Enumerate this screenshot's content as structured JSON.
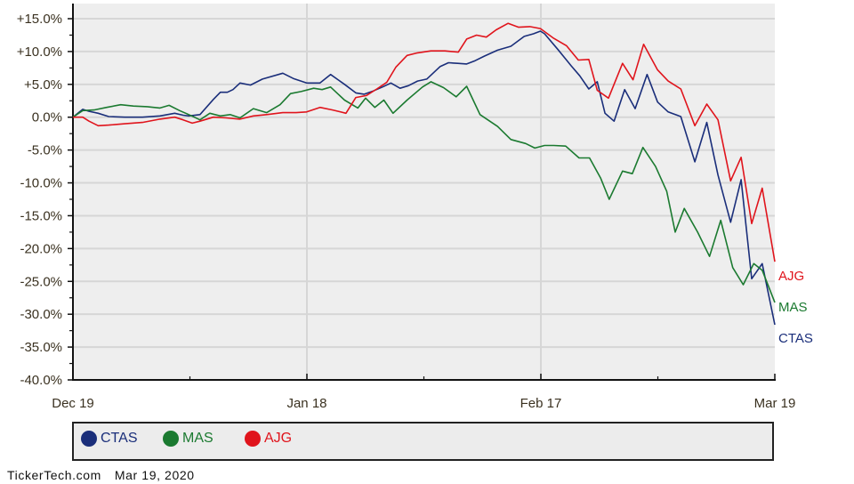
{
  "footer": {
    "source": "TickerTech.com",
    "date": "Mar 19, 2020"
  },
  "legend": [
    {
      "label": "CTAS",
      "color": "#1a2e7a"
    },
    {
      "label": "MAS",
      "color": "#1b7a30"
    },
    {
      "label": "AJG",
      "color": "#e0141c"
    }
  ],
  "chart_data": {
    "type": "line",
    "title": "",
    "xlabel": "",
    "ylabel": "",
    "ylim": [
      -40,
      15
    ],
    "y_ticks": [
      "+15.0%",
      "+10.0%",
      "+5.0%",
      "0.0%",
      "-5.0%",
      "-10.0%",
      "-15.0%",
      "-20.0%",
      "-25.0%",
      "-30.0%",
      "-35.0%",
      "-40.0%"
    ],
    "x_ticks": [
      "Dec 19",
      "Jan 18",
      "Feb 17",
      "Mar 19"
    ],
    "x_range": [
      "Dec 19",
      "Mar 19"
    ],
    "grid": true,
    "legend_position": "bottom",
    "plot_bg": "#eeeeee",
    "series": [
      {
        "name": "CTAS",
        "color": "#1a2e7a",
        "end_label": "CTAS",
        "points": [
          [
            0.0,
            0.0
          ],
          [
            0.014,
            1.2
          ],
          [
            0.023,
            0.9
          ],
          [
            0.036,
            0.6
          ],
          [
            0.051,
            0.1
          ],
          [
            0.074,
            0.0
          ],
          [
            0.099,
            0.0
          ],
          [
            0.124,
            0.2
          ],
          [
            0.145,
            0.6
          ],
          [
            0.157,
            0.3
          ],
          [
            0.165,
            0.2
          ],
          [
            0.181,
            0.4
          ],
          [
            0.2,
            2.7
          ],
          [
            0.21,
            3.8
          ],
          [
            0.22,
            3.8
          ],
          [
            0.228,
            4.2
          ],
          [
            0.238,
            5.2
          ],
          [
            0.253,
            4.9
          ],
          [
            0.27,
            5.8
          ],
          [
            0.299,
            6.7
          ],
          [
            0.314,
            5.9
          ],
          [
            0.333,
            5.2
          ],
          [
            0.352,
            5.2
          ],
          [
            0.367,
            6.5
          ],
          [
            0.387,
            5.0
          ],
          [
            0.403,
            3.7
          ],
          [
            0.415,
            3.5
          ],
          [
            0.428,
            4.0
          ],
          [
            0.441,
            4.6
          ],
          [
            0.453,
            5.2
          ],
          [
            0.466,
            4.4
          ],
          [
            0.478,
            4.8
          ],
          [
            0.491,
            5.5
          ],
          [
            0.504,
            5.8
          ],
          [
            0.523,
            7.7
          ],
          [
            0.535,
            8.3
          ],
          [
            0.548,
            8.2
          ],
          [
            0.561,
            8.1
          ],
          [
            0.573,
            8.6
          ],
          [
            0.586,
            9.3
          ],
          [
            0.605,
            10.2
          ],
          [
            0.624,
            10.8
          ],
          [
            0.643,
            12.3
          ],
          [
            0.656,
            12.7
          ],
          [
            0.666,
            13.1
          ],
          [
            0.672,
            12.7
          ],
          [
            0.691,
            10.3
          ],
          [
            0.71,
            7.8
          ],
          [
            0.722,
            6.3
          ],
          [
            0.735,
            4.3
          ],
          [
            0.747,
            5.4
          ],
          [
            0.758,
            0.6
          ],
          [
            0.771,
            -0.6
          ],
          [
            0.786,
            4.2
          ],
          [
            0.801,
            1.3
          ],
          [
            0.818,
            6.5
          ],
          [
            0.833,
            2.3
          ],
          [
            0.848,
            0.8
          ],
          [
            0.866,
            0.1
          ],
          [
            0.886,
            -6.8
          ],
          [
            0.903,
            -0.8
          ],
          [
            0.919,
            -8.8
          ],
          [
            0.937,
            -16.0
          ],
          [
            0.952,
            -9.5
          ],
          [
            0.967,
            -24.6
          ],
          [
            0.982,
            -22.3
          ],
          [
            1.0,
            -31.6
          ]
        ]
      },
      {
        "name": "MAS",
        "color": "#1b7a30",
        "end_label": "MAS",
        "points": [
          [
            0.0,
            0.0
          ],
          [
            0.014,
            1.0
          ],
          [
            0.03,
            1.1
          ],
          [
            0.048,
            1.5
          ],
          [
            0.068,
            1.9
          ],
          [
            0.086,
            1.7
          ],
          [
            0.106,
            1.6
          ],
          [
            0.124,
            1.4
          ],
          [
            0.137,
            1.8
          ],
          [
            0.152,
            1.0
          ],
          [
            0.165,
            0.4
          ],
          [
            0.181,
            -0.4
          ],
          [
            0.195,
            0.6
          ],
          [
            0.21,
            0.2
          ],
          [
            0.224,
            0.4
          ],
          [
            0.238,
            -0.1
          ],
          [
            0.257,
            1.3
          ],
          [
            0.276,
            0.7
          ],
          [
            0.295,
            1.9
          ],
          [
            0.31,
            3.6
          ],
          [
            0.325,
            3.9
          ],
          [
            0.343,
            4.4
          ],
          [
            0.355,
            4.2
          ],
          [
            0.367,
            4.6
          ],
          [
            0.387,
            2.6
          ],
          [
            0.406,
            1.4
          ],
          [
            0.417,
            2.9
          ],
          [
            0.43,
            1.5
          ],
          [
            0.443,
            2.6
          ],
          [
            0.456,
            0.6
          ],
          [
            0.476,
            2.6
          ],
          [
            0.498,
            4.6
          ],
          [
            0.51,
            5.4
          ],
          [
            0.528,
            4.5
          ],
          [
            0.546,
            3.1
          ],
          [
            0.561,
            4.7
          ],
          [
            0.58,
            0.4
          ],
          [
            0.605,
            -1.4
          ],
          [
            0.624,
            -3.4
          ],
          [
            0.645,
            -4.0
          ],
          [
            0.658,
            -4.7
          ],
          [
            0.672,
            -4.3
          ],
          [
            0.685,
            -4.3
          ],
          [
            0.702,
            -4.4
          ],
          [
            0.721,
            -6.2
          ],
          [
            0.736,
            -6.2
          ],
          [
            0.752,
            -9.3
          ],
          [
            0.764,
            -12.5
          ],
          [
            0.783,
            -8.2
          ],
          [
            0.797,
            -8.6
          ],
          [
            0.812,
            -4.6
          ],
          [
            0.83,
            -7.5
          ],
          [
            0.846,
            -11.3
          ],
          [
            0.858,
            -17.5
          ],
          [
            0.871,
            -13.9
          ],
          [
            0.89,
            -17.5
          ],
          [
            0.907,
            -21.2
          ],
          [
            0.923,
            -15.7
          ],
          [
            0.94,
            -22.9
          ],
          [
            0.955,
            -25.5
          ],
          [
            0.97,
            -22.3
          ],
          [
            0.982,
            -23.3
          ],
          [
            1.0,
            -28.2
          ]
        ]
      },
      {
        "name": "AJG",
        "color": "#e0141c",
        "end_label": "AJG",
        "points": [
          [
            0.0,
            0.0
          ],
          [
            0.014,
            0.0
          ],
          [
            0.023,
            -0.6
          ],
          [
            0.036,
            -1.3
          ],
          [
            0.051,
            -1.2
          ],
          [
            0.074,
            -1.0
          ],
          [
            0.099,
            -0.8
          ],
          [
            0.124,
            -0.3
          ],
          [
            0.145,
            0.0
          ],
          [
            0.157,
            -0.4
          ],
          [
            0.17,
            -0.9
          ],
          [
            0.181,
            -0.6
          ],
          [
            0.2,
            0.0
          ],
          [
            0.218,
            -0.1
          ],
          [
            0.238,
            -0.3
          ],
          [
            0.257,
            0.2
          ],
          [
            0.276,
            0.4
          ],
          [
            0.299,
            0.7
          ],
          [
            0.318,
            0.7
          ],
          [
            0.333,
            0.8
          ],
          [
            0.352,
            1.5
          ],
          [
            0.37,
            1.1
          ],
          [
            0.389,
            0.6
          ],
          [
            0.403,
            3.0
          ],
          [
            0.418,
            3.3
          ],
          [
            0.433,
            4.3
          ],
          [
            0.447,
            5.3
          ],
          [
            0.46,
            7.6
          ],
          [
            0.476,
            9.4
          ],
          [
            0.491,
            9.8
          ],
          [
            0.51,
            10.1
          ],
          [
            0.53,
            10.1
          ],
          [
            0.549,
            9.9
          ],
          [
            0.561,
            11.9
          ],
          [
            0.575,
            12.5
          ],
          [
            0.589,
            12.2
          ],
          [
            0.603,
            13.3
          ],
          [
            0.62,
            14.3
          ],
          [
            0.635,
            13.7
          ],
          [
            0.651,
            13.8
          ],
          [
            0.666,
            13.5
          ],
          [
            0.685,
            12.0
          ],
          [
            0.703,
            10.9
          ],
          [
            0.72,
            8.7
          ],
          [
            0.735,
            8.8
          ],
          [
            0.747,
            4.1
          ],
          [
            0.763,
            2.9
          ],
          [
            0.783,
            8.2
          ],
          [
            0.798,
            5.7
          ],
          [
            0.813,
            11.1
          ],
          [
            0.833,
            7.2
          ],
          [
            0.848,
            5.5
          ],
          [
            0.866,
            4.3
          ],
          [
            0.886,
            -1.3
          ],
          [
            0.903,
            2.0
          ],
          [
            0.919,
            -0.4
          ],
          [
            0.937,
            -9.7
          ],
          [
            0.952,
            -6.1
          ],
          [
            0.967,
            -16.2
          ],
          [
            0.982,
            -10.8
          ],
          [
            1.0,
            -22.0
          ]
        ]
      }
    ]
  }
}
